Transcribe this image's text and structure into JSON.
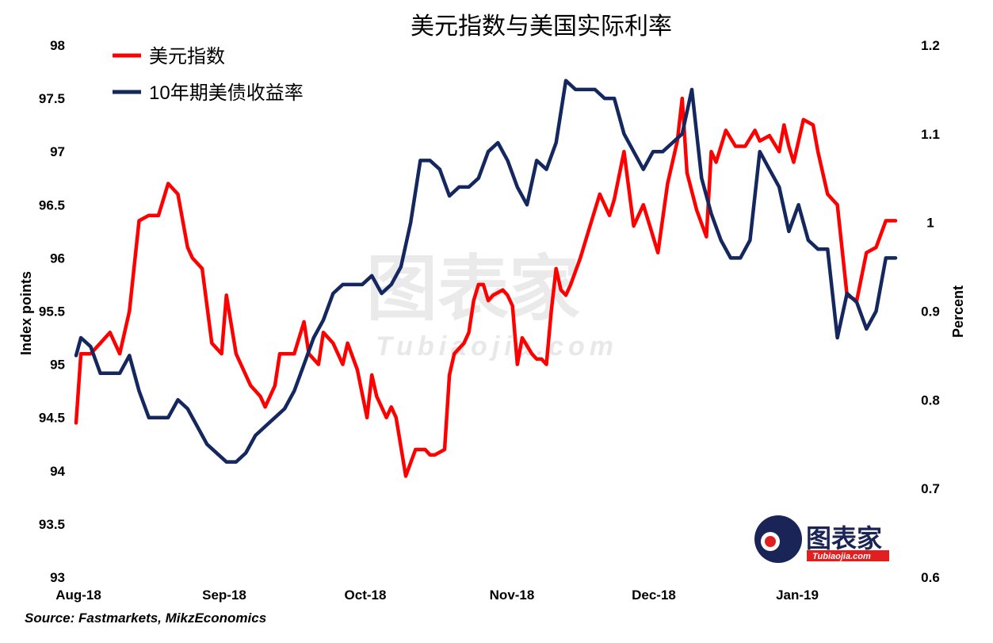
{
  "chart_data": {
    "type": "line",
    "title": "美元指数与美国实际利率",
    "ylabel_left": "Index points",
    "ylabel_right": "Percent",
    "source": "Source: Fastmarkets, MikzEconomics",
    "watermark": {
      "main": "图表家",
      "sub": "Tubiaojia.com"
    },
    "logo": {
      "main": "图表家",
      "sub": "Tubiaojia.com"
    },
    "legend_position": "top-left",
    "grid": false,
    "x_ticks": [
      "Aug-18",
      "Sep-18",
      "Oct-18",
      "Nov-18",
      "Dec-18",
      "Jan-19"
    ],
    "ylim_left": [
      93,
      98
    ],
    "yticks_left": [
      "93",
      "93.5",
      "94",
      "94.5",
      "95",
      "95.5",
      "96",
      "96.5",
      "97",
      "97.5",
      "98"
    ],
    "ylim_right": [
      0.6,
      1.2
    ],
    "yticks_right": [
      "0.6",
      "0.7",
      "0.8",
      "0.9",
      "1",
      "1.1",
      "1.2"
    ],
    "colors": {
      "dxy": "#ff0000",
      "yield": "#14275e"
    },
    "series": [
      {
        "name": "美元指数",
        "axis": "left",
        "color": "#ff0000",
        "x": [
          0,
          1,
          3,
          5,
          7,
          9,
          11,
          13,
          15,
          17,
          19,
          21,
          23,
          24,
          26,
          28,
          30,
          31,
          33,
          34,
          36,
          38,
          39,
          41,
          42,
          44,
          45,
          47,
          48,
          50,
          51,
          53,
          54,
          55,
          56,
          58,
          60,
          61,
          62,
          63,
          64,
          65,
          66,
          68,
          70,
          72,
          73,
          74,
          76,
          77,
          78,
          80,
          81,
          82,
          83,
          84,
          85,
          86,
          88,
          89,
          90,
          91,
          92,
          94,
          95,
          96,
          97,
          98,
          99,
          100,
          101,
          102,
          104,
          106,
          108,
          110,
          111,
          113,
          115,
          117,
          118,
          120,
          122,
          124,
          125,
          126,
          128,
          130,
          131,
          132,
          134,
          136,
          138,
          140,
          141,
          143,
          145,
          146,
          147,
          148,
          150,
          152,
          153,
          155,
          157,
          159,
          161,
          163,
          165,
          167,
          169
        ],
        "values": [
          94.45,
          95.1,
          95.1,
          95.2,
          95.3,
          95.1,
          95.5,
          96.35,
          96.4,
          96.4,
          96.7,
          96.6,
          96.1,
          96.0,
          95.9,
          95.2,
          95.1,
          95.65,
          95.1,
          95.0,
          94.8,
          94.7,
          94.6,
          94.8,
          95.1,
          95.1,
          95.1,
          95.4,
          95.1,
          95.0,
          95.3,
          95.2,
          95.1,
          95.0,
          95.2,
          94.95,
          94.5,
          94.9,
          94.7,
          94.6,
          94.5,
          94.6,
          94.5,
          93.95,
          94.2,
          94.2,
          94.15,
          94.15,
          94.2,
          94.9,
          95.1,
          95.2,
          95.3,
          95.6,
          95.75,
          95.75,
          95.6,
          95.65,
          95.7,
          95.65,
          95.55,
          95.0,
          95.25,
          95.1,
          95.05,
          95.05,
          95.0,
          95.5,
          95.9,
          95.7,
          95.65,
          95.75,
          96.0,
          96.3,
          96.6,
          96.4,
          96.55,
          97.0,
          96.3,
          96.5,
          96.35,
          96.05,
          96.7,
          97.1,
          97.5,
          96.8,
          96.45,
          96.2,
          97.0,
          96.9,
          97.2,
          97.05,
          97.05,
          97.2,
          97.1,
          97.15,
          97.0,
          97.25,
          97.05,
          96.9,
          97.3,
          97.25,
          97.0,
          96.6,
          96.5,
          95.65,
          95.6,
          96.05,
          96.1,
          96.35,
          96.35
        ],
        "note_value_series": "approximate readings"
      },
      {
        "name": "10年期美债收益率",
        "axis": "right",
        "color": "#14275e",
        "x": [
          0,
          1,
          3,
          5,
          7,
          9,
          11,
          13,
          15,
          17,
          19,
          21,
          23,
          25,
          27,
          29,
          31,
          33,
          35,
          37,
          39,
          41,
          43,
          45,
          47,
          49,
          51,
          53,
          55,
          57,
          59,
          61,
          63,
          65,
          67,
          69,
          71,
          73,
          75,
          77,
          79,
          81,
          83,
          85,
          87,
          89,
          91,
          93,
          95,
          97,
          99,
          101,
          103,
          105,
          107,
          109,
          111,
          113,
          115,
          117,
          119,
          121,
          123,
          125,
          127,
          129,
          131,
          133,
          135,
          137,
          139,
          141,
          143,
          145,
          147,
          149,
          151,
          153,
          155,
          157,
          159,
          161,
          163,
          165,
          167,
          169
        ],
        "values": [
          0.85,
          0.87,
          0.86,
          0.83,
          0.83,
          0.83,
          0.85,
          0.81,
          0.78,
          0.78,
          0.78,
          0.8,
          0.79,
          0.77,
          0.75,
          0.74,
          0.73,
          0.73,
          0.74,
          0.76,
          0.77,
          0.78,
          0.79,
          0.81,
          0.84,
          0.87,
          0.89,
          0.92,
          0.93,
          0.93,
          0.93,
          0.94,
          0.92,
          0.93,
          0.95,
          1.0,
          1.07,
          1.07,
          1.06,
          1.03,
          1.04,
          1.04,
          1.05,
          1.08,
          1.09,
          1.07,
          1.04,
          1.02,
          1.07,
          1.06,
          1.09,
          1.16,
          1.15,
          1.15,
          1.15,
          1.14,
          1.14,
          1.1,
          1.08,
          1.06,
          1.08,
          1.08,
          1.09,
          1.1,
          1.15,
          1.05,
          1.01,
          0.98,
          0.96,
          0.96,
          0.98,
          1.08,
          1.06,
          1.04,
          0.99,
          1.02,
          0.98,
          0.97,
          0.97,
          0.87,
          0.92,
          0.91,
          0.88,
          0.9,
          0.96,
          0.96
        ],
        "note_value_series": "approximate readings"
      }
    ]
  }
}
